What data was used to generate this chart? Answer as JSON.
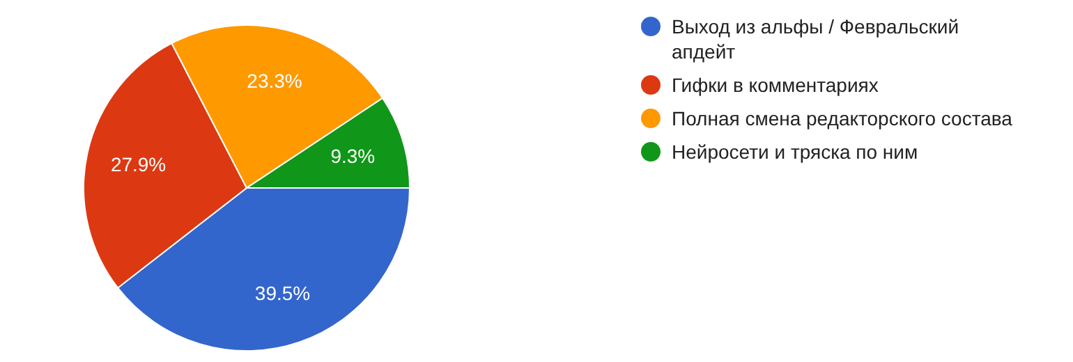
{
  "chart_data": {
    "type": "pie",
    "categories": [
      "Выход из альфы / Февральский апдейт",
      "Гифки в комментариях",
      "Полная смена редакторского состава",
      "Нейросети и тряска по ним"
    ],
    "values": [
      39.5,
      27.9,
      23.3,
      9.3
    ],
    "value_labels": [
      "39.5%",
      "27.9%",
      "23.3%",
      "9.3%"
    ],
    "colors": [
      "#3366cc",
      "#dc3912",
      "#ff9900",
      "#109618"
    ],
    "legend": "right"
  }
}
